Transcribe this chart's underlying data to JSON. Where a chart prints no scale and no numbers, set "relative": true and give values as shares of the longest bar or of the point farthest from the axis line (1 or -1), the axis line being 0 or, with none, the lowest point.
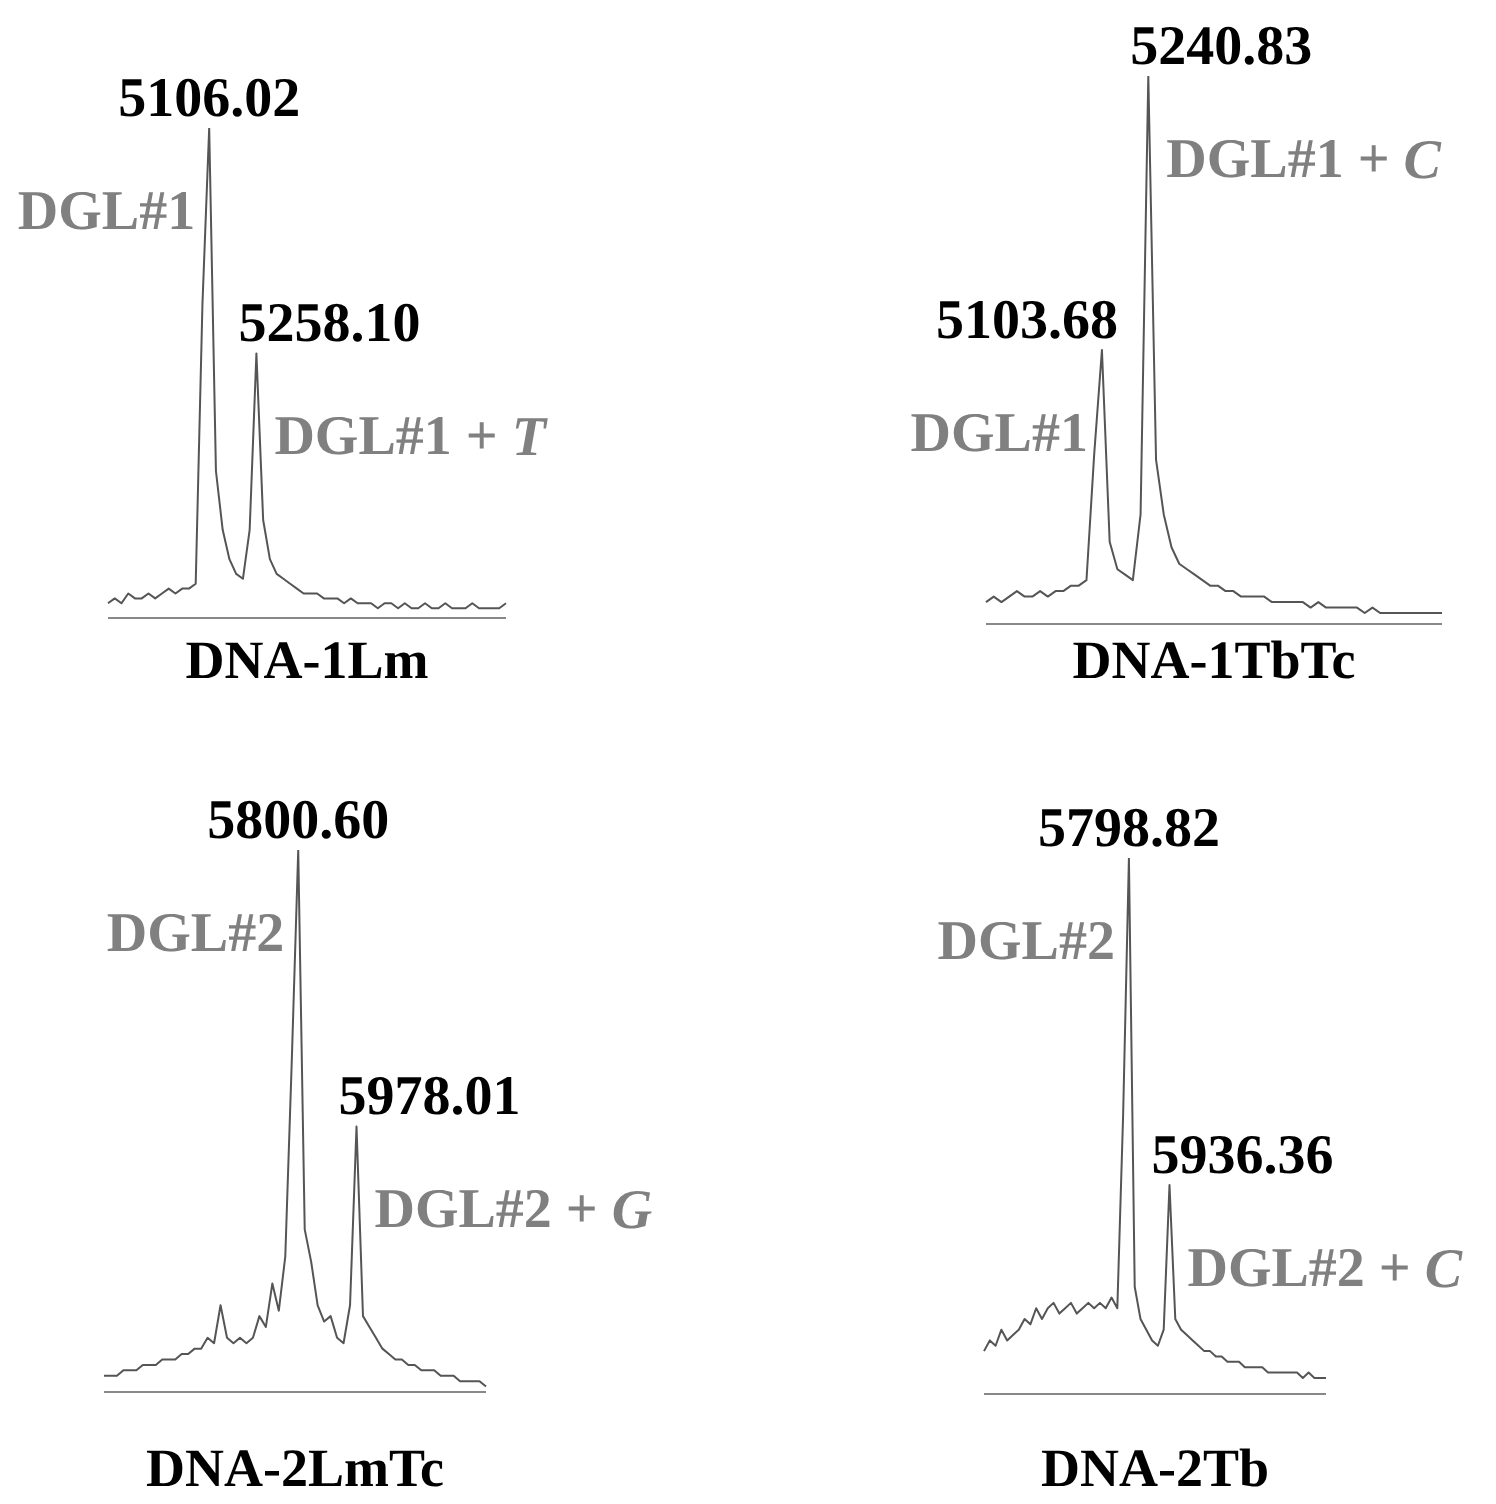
{
  "chart_data": [
    {
      "type": "line",
      "xlabel": "DNA-1Lm",
      "relative": true,
      "color": "#555555",
      "categories": [
        null,
        null,
        null,
        null,
        null,
        null,
        null,
        null,
        null,
        null,
        null,
        null,
        null,
        null,
        null,
        null,
        null,
        null,
        null,
        null,
        null,
        null,
        null,
        null,
        null,
        null,
        null,
        null,
        null,
        null,
        null,
        null,
        null,
        null,
        null,
        null,
        null,
        null,
        null,
        null,
        null,
        null,
        null,
        null,
        null,
        null,
        null,
        null,
        null,
        null,
        null,
        null,
        null,
        null,
        null,
        null,
        null,
        null,
        null,
        null
      ],
      "values": [
        0.03,
        0.04,
        0.03,
        0.05,
        0.04,
        0.04,
        0.05,
        0.04,
        0.05,
        0.06,
        0.05,
        0.06,
        0.06,
        0.07,
        0.64,
        1.0,
        0.3,
        0.18,
        0.12,
        0.09,
        0.08,
        0.18,
        0.54,
        0.2,
        0.12,
        0.09,
        0.08,
        0.07,
        0.06,
        0.05,
        0.05,
        0.05,
        0.04,
        0.04,
        0.04,
        0.03,
        0.04,
        0.03,
        0.03,
        0.03,
        0.02,
        0.03,
        0.03,
        0.02,
        0.03,
        0.02,
        0.02,
        0.03,
        0.02,
        0.02,
        0.03,
        0.02,
        0.02,
        0.02,
        0.03,
        0.02,
        0.02,
        0.02,
        0.02,
        0.03
      ],
      "annotations": [
        "5106.02",
        "DGL#1",
        "5258.10",
        "DGL#1 + T"
      ]
    },
    {
      "type": "line",
      "xlabel": "DNA-1TbTc",
      "relative": true,
      "color": "#555555",
      "categories": [
        null,
        null,
        null,
        null,
        null,
        null,
        null,
        null,
        null,
        null,
        null,
        null,
        null,
        null,
        null,
        null,
        null,
        null,
        null,
        null,
        null,
        null,
        null,
        null,
        null,
        null,
        null,
        null,
        null,
        null,
        null,
        null,
        null,
        null,
        null,
        null,
        null,
        null,
        null,
        null,
        null,
        null,
        null,
        null,
        null,
        null,
        null,
        null,
        null,
        null,
        null,
        null,
        null,
        null,
        null,
        null,
        null,
        null,
        null,
        null
      ],
      "values": [
        0.04,
        0.05,
        0.04,
        0.05,
        0.06,
        0.05,
        0.05,
        0.06,
        0.05,
        0.06,
        0.06,
        0.07,
        0.07,
        0.08,
        0.31,
        0.5,
        0.15,
        0.1,
        0.09,
        0.08,
        0.2,
        1.0,
        0.3,
        0.2,
        0.14,
        0.11,
        0.1,
        0.09,
        0.08,
        0.07,
        0.07,
        0.06,
        0.06,
        0.05,
        0.05,
        0.05,
        0.05,
        0.04,
        0.04,
        0.04,
        0.04,
        0.04,
        0.03,
        0.04,
        0.03,
        0.03,
        0.03,
        0.03,
        0.03,
        0.02,
        0.03,
        0.02,
        0.02,
        0.02,
        0.02,
        0.02,
        0.02,
        0.02,
        0.02,
        0.02
      ],
      "annotations": [
        "5103.68",
        "DGL#1",
        "5240.83",
        "DGL#1 + C"
      ]
    },
    {
      "type": "line",
      "xlabel": "DNA-2LmTc",
      "relative": true,
      "color": "#555555",
      "categories": [
        null,
        null,
        null,
        null,
        null,
        null,
        null,
        null,
        null,
        null,
        null,
        null,
        null,
        null,
        null,
        null,
        null,
        null,
        null,
        null,
        null,
        null,
        null,
        null,
        null,
        null,
        null,
        null,
        null,
        null,
        null,
        null,
        null,
        null,
        null,
        null,
        null,
        null,
        null,
        null,
        null,
        null,
        null,
        null,
        null,
        null,
        null,
        null,
        null,
        null,
        null,
        null,
        null,
        null,
        null,
        null,
        null,
        null,
        null,
        null
      ],
      "values": [
        0.03,
        0.03,
        0.03,
        0.04,
        0.04,
        0.04,
        0.05,
        0.05,
        0.05,
        0.06,
        0.06,
        0.06,
        0.07,
        0.07,
        0.08,
        0.08,
        0.1,
        0.09,
        0.16,
        0.1,
        0.09,
        0.1,
        0.09,
        0.1,
        0.14,
        0.12,
        0.2,
        0.15,
        0.25,
        0.61,
        1.0,
        0.3,
        0.24,
        0.16,
        0.13,
        0.14,
        0.1,
        0.09,
        0.16,
        0.49,
        0.14,
        0.12,
        0.1,
        0.08,
        0.07,
        0.06,
        0.06,
        0.05,
        0.05,
        0.04,
        0.04,
        0.04,
        0.03,
        0.03,
        0.03,
        0.02,
        0.02,
        0.02,
        0.02,
        0.01
      ],
      "annotations": [
        "5800.60",
        "DGL#2",
        "5978.01",
        "DGL#2 + G"
      ]
    },
    {
      "type": "line",
      "xlabel": "DNA-2Tb",
      "relative": true,
      "color": "#555555",
      "categories": [
        null,
        null,
        null,
        null,
        null,
        null,
        null,
        null,
        null,
        null,
        null,
        null,
        null,
        null,
        null,
        null,
        null,
        null,
        null,
        null,
        null,
        null,
        null,
        null,
        null,
        null,
        null,
        null,
        null,
        null,
        null,
        null,
        null,
        null,
        null,
        null,
        null,
        null,
        null,
        null,
        null,
        null,
        null,
        null,
        null,
        null,
        null,
        null,
        null,
        null,
        null,
        null,
        null,
        null,
        null,
        null,
        null,
        null,
        null,
        null
      ],
      "values": [
        0.08,
        0.1,
        0.09,
        0.12,
        0.1,
        0.11,
        0.12,
        0.14,
        0.13,
        0.16,
        0.14,
        0.16,
        0.17,
        0.15,
        0.16,
        0.17,
        0.15,
        0.16,
        0.17,
        0.16,
        0.17,
        0.16,
        0.18,
        0.16,
        0.52,
        1.0,
        0.2,
        0.14,
        0.12,
        0.1,
        0.09,
        0.12,
        0.39,
        0.14,
        0.12,
        0.11,
        0.1,
        0.09,
        0.08,
        0.08,
        0.07,
        0.07,
        0.06,
        0.06,
        0.06,
        0.05,
        0.05,
        0.05,
        0.05,
        0.04,
        0.04,
        0.04,
        0.04,
        0.04,
        0.04,
        0.03,
        0.04,
        0.03,
        0.03,
        0.03
      ],
      "annotations": [
        "5798.82",
        "DGL#2",
        "5936.36",
        "DGL#2 + C"
      ]
    }
  ]
}
